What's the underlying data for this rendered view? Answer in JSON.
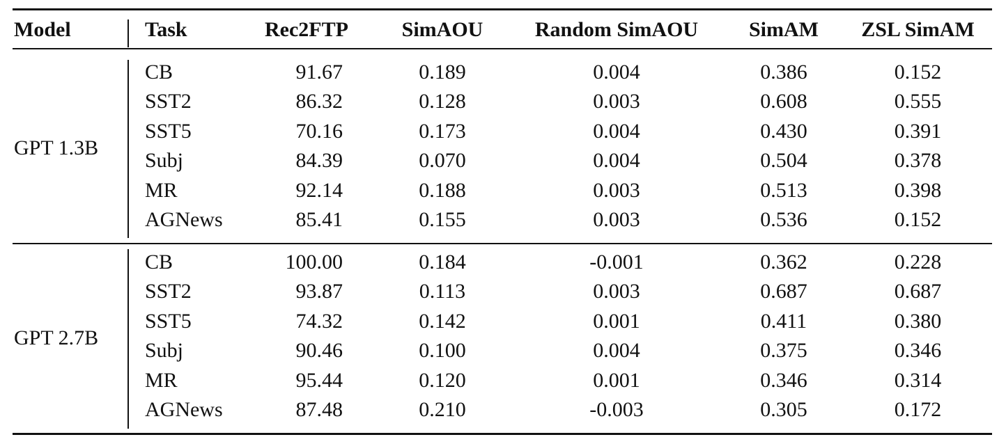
{
  "table": {
    "headers": [
      "Model",
      "Task",
      "Rec2FTP",
      "SimAOU",
      "Random SimAOU",
      "SimAM",
      "ZSL SimAM"
    ],
    "groups": [
      {
        "model": "GPT 1.3B",
        "rows": [
          {
            "task": "CB",
            "rec2ftp": "91.67",
            "simaou": "0.189",
            "random_simaou": "0.004",
            "simam": "0.386",
            "zsl_simam": "0.152"
          },
          {
            "task": "SST2",
            "rec2ftp": "86.32",
            "simaou": "0.128",
            "random_simaou": "0.003",
            "simam": "0.608",
            "zsl_simam": "0.555"
          },
          {
            "task": "SST5",
            "rec2ftp": "70.16",
            "simaou": "0.173",
            "random_simaou": "0.004",
            "simam": "0.430",
            "zsl_simam": "0.391"
          },
          {
            "task": "Subj",
            "rec2ftp": "84.39",
            "simaou": "0.070",
            "random_simaou": "0.004",
            "simam": "0.504",
            "zsl_simam": "0.378"
          },
          {
            "task": "MR",
            "rec2ftp": "92.14",
            "simaou": "0.188",
            "random_simaou": "0.003",
            "simam": "0.513",
            "zsl_simam": "0.398"
          },
          {
            "task": "AGNews",
            "rec2ftp": "85.41",
            "simaou": "0.155",
            "random_simaou": "0.003",
            "simam": "0.536",
            "zsl_simam": "0.152"
          }
        ]
      },
      {
        "model": "GPT 2.7B",
        "rows": [
          {
            "task": "CB",
            "rec2ftp": "100.00",
            "simaou": "0.184",
            "random_simaou": "-0.001",
            "simam": "0.362",
            "zsl_simam": "0.228"
          },
          {
            "task": "SST2",
            "rec2ftp": "93.87",
            "simaou": "0.113",
            "random_simaou": "0.003",
            "simam": "0.687",
            "zsl_simam": "0.687"
          },
          {
            "task": "SST5",
            "rec2ftp": "74.32",
            "simaou": "0.142",
            "random_simaou": "0.001",
            "simam": "0.411",
            "zsl_simam": "0.380"
          },
          {
            "task": "Subj",
            "rec2ftp": "90.46",
            "simaou": "0.100",
            "random_simaou": "0.004",
            "simam": "0.375",
            "zsl_simam": "0.346"
          },
          {
            "task": "MR",
            "rec2ftp": "95.44",
            "simaou": "0.120",
            "random_simaou": "0.001",
            "simam": "0.346",
            "zsl_simam": "0.314"
          },
          {
            "task": "AGNews",
            "rec2ftp": "87.48",
            "simaou": "0.210",
            "random_simaou": "-0.003",
            "simam": "0.305",
            "zsl_simam": "0.172"
          }
        ]
      }
    ]
  }
}
